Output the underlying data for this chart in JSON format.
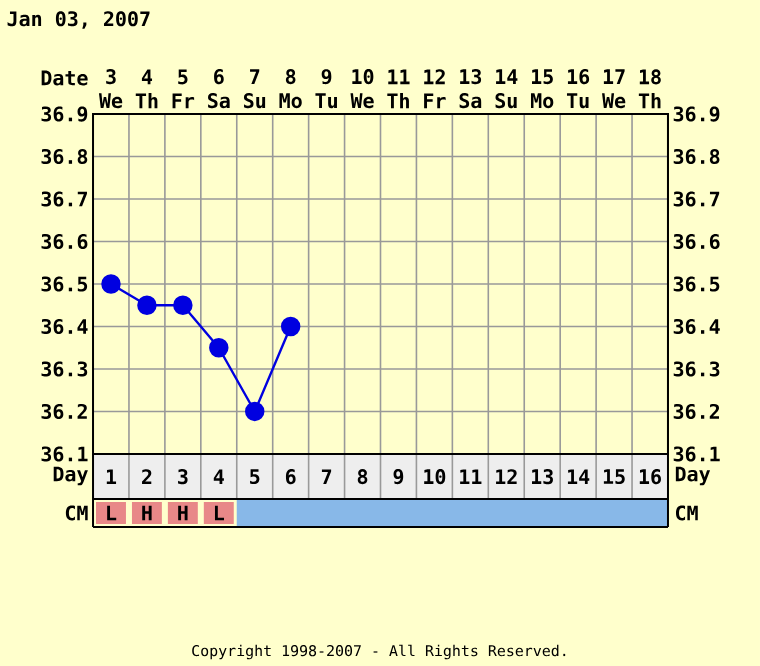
{
  "chart_data": {
    "type": "line",
    "title": "Jan 03, 2007",
    "categories": [
      "1",
      "2",
      "3",
      "4",
      "5",
      "6",
      "7",
      "8",
      "9",
      "10",
      "11",
      "12",
      "13",
      "14",
      "15",
      "16"
    ],
    "xlabel": "Day",
    "x2label": "Date",
    "x2lim": [
      2.5,
      18.5
    ],
    "x2ticks": [
      {
        "value": 3,
        "label": "3 We"
      },
      {
        "value": 4,
        "label": "4 Th"
      },
      {
        "value": 5,
        "label": "5 Fr"
      },
      {
        "value": 6,
        "label": "6 Sa"
      },
      {
        "value": 7,
        "label": "7 Su"
      },
      {
        "value": 8,
        "label": "8 Mo"
      },
      {
        "value": 9,
        "label": "9 Tu"
      },
      {
        "value": 10,
        "label": "10 We"
      },
      {
        "value": 11,
        "label": "11 Th"
      },
      {
        "value": 12,
        "label": "12 Fr"
      },
      {
        "value": 13,
        "label": "13 Sa"
      },
      {
        "value": 14,
        "label": "14 Su"
      },
      {
        "value": 15,
        "label": "15 Mo"
      },
      {
        "value": 16,
        "label": "16 Tu"
      },
      {
        "value": 17,
        "label": "17 We"
      },
      {
        "value": 18,
        "label": "18 Th"
      }
    ],
    "ylim": [
      36.1,
      36.9
    ],
    "yticks": [
      36.1,
      36.2,
      36.3,
      36.4,
      36.5,
      36.6,
      36.7,
      36.8,
      36.9
    ],
    "y2lim": [
      36.1,
      36.9
    ],
    "y2ticks": [
      36.1,
      36.2,
      36.3,
      36.4,
      36.5,
      36.6,
      36.7,
      36.8,
      36.9
    ],
    "series": [
      {
        "color": "#0000e0",
        "values": [
          36.5,
          36.45,
          36.45,
          36.35,
          36.2,
          36.4,
          null,
          null,
          null,
          null,
          null,
          null,
          null,
          null,
          null,
          null
        ]
      }
    ],
    "marker": "circle",
    "line_style": "solid",
    "grid": true,
    "annotations": [
      "CM",
      "L",
      "H",
      "H",
      "L",
      "Copyright 1998-2007 - All Rights Reserved."
    ]
  }
}
